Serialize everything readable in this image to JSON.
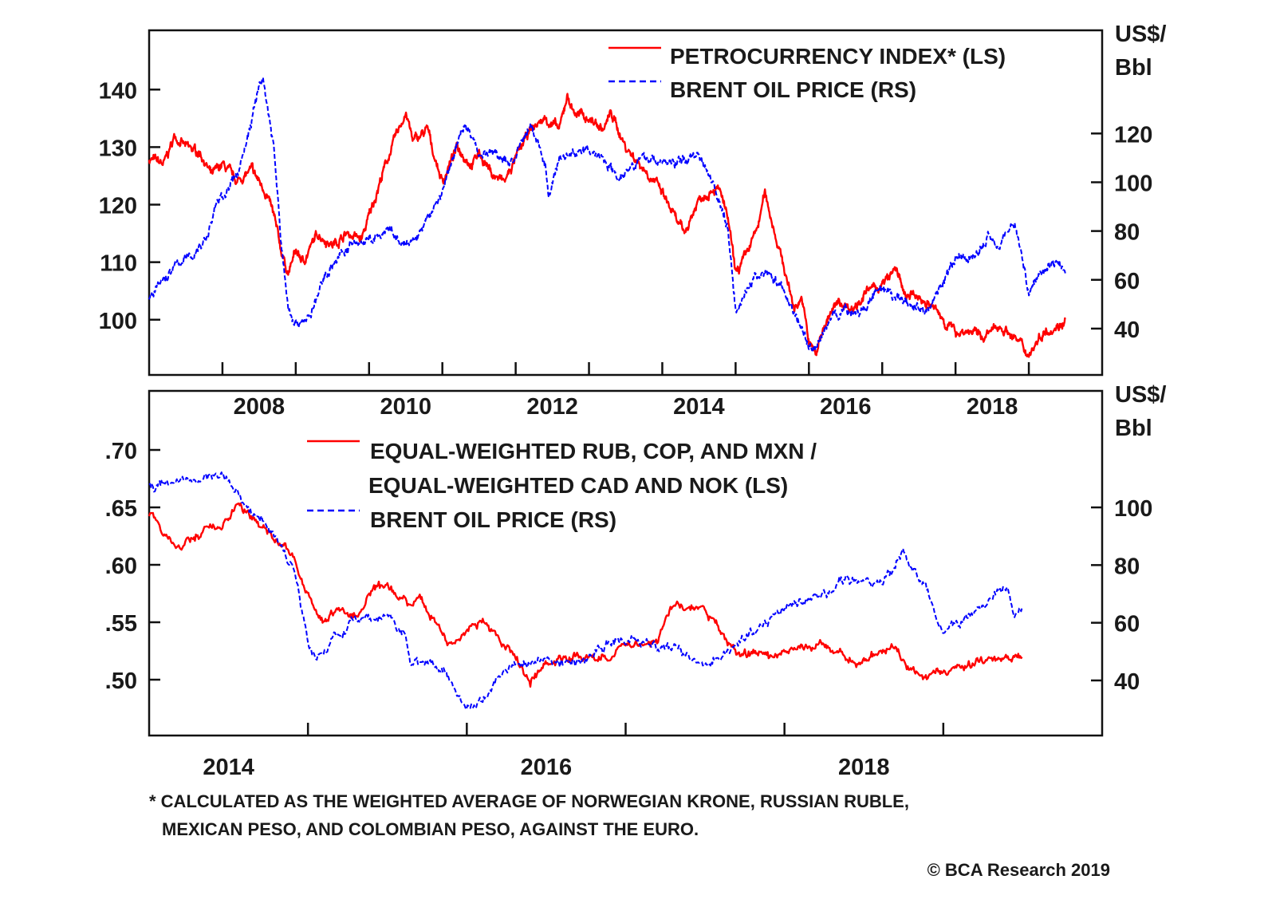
{
  "chart_data": [
    {
      "type": "line",
      "title": "",
      "x_ticks": [
        "2008",
        "2010",
        "2012",
        "2014",
        "2016",
        "2018"
      ],
      "xlim": [
        2007,
        2020
      ],
      "left_axis": {
        "label": "",
        "ticks": [
          "140",
          "130",
          "120",
          "110",
          "100"
        ],
        "tick_values": [
          140,
          130,
          120,
          110,
          100
        ],
        "ylim": [
          90.4,
          150.3
        ]
      },
      "right_axis": {
        "label_line1": "US$/",
        "label_line2": "Bbl",
        "ticks": [
          "120",
          "100",
          "80",
          "60",
          "40"
        ],
        "tick_values": [
          120,
          100,
          80,
          60,
          40
        ],
        "ylim": [
          21,
          162.3
        ]
      },
      "legend": {
        "placement": "top-right",
        "entries": [
          "PETROCURRENCY INDEX* (LS)",
          "BRENT OIL PRICE (RS)"
        ]
      },
      "series": [
        {
          "name": "PETROCURRENCY INDEX* (LS)",
          "axis": "left",
          "color": "#ff0000",
          "style": "solid",
          "x": [
            2007.0,
            2007.2,
            2007.35,
            2007.5,
            2007.7,
            2007.85,
            2008.0,
            2008.2,
            2008.4,
            2008.6,
            2008.7,
            2008.8,
            2008.9,
            2009.0,
            2009.1,
            2009.3,
            2009.5,
            2009.7,
            2009.9,
            2010.0,
            2010.2,
            2010.4,
            2010.5,
            2010.6,
            2010.8,
            2010.9,
            2011.0,
            2011.2,
            2011.4,
            2011.5,
            2011.7,
            2011.85,
            2012.0,
            2012.2,
            2012.4,
            2012.6,
            2012.7,
            2012.8,
            2013.0,
            2013.2,
            2013.3,
            2013.5,
            2013.7,
            2013.9,
            2014.0,
            2014.2,
            2014.3,
            2014.5,
            2014.7,
            2014.8,
            2014.9,
            2015.0,
            2015.1,
            2015.3,
            2015.4,
            2015.5,
            2015.6,
            2015.8,
            2015.9,
            2016.0,
            2016.1,
            2016.2,
            2016.4,
            2016.6,
            2016.8,
            2017.0,
            2017.2,
            2017.3,
            2017.5,
            2017.7,
            2017.9,
            2018.0,
            2018.2,
            2018.4,
            2018.6,
            2018.8,
            2019.0,
            2019.2,
            2019.4,
            2019.5
          ],
          "y": [
            128,
            127,
            132,
            130,
            129,
            125,
            127,
            124,
            126,
            122,
            118,
            112,
            108,
            112,
            110,
            115,
            113,
            115,
            114,
            118,
            126,
            133,
            136,
            131,
            133,
            128,
            124,
            130,
            127,
            129,
            125,
            124,
            128,
            133,
            135,
            133,
            139,
            136,
            135,
            133,
            136,
            130,
            127,
            124,
            122,
            117,
            115,
            121,
            123,
            122,
            117,
            108,
            110,
            116,
            122,
            117,
            112,
            102,
            104,
            96,
            94,
            99,
            103,
            102,
            105,
            106,
            109,
            104,
            104,
            102,
            99,
            98,
            98,
            97,
            99,
            97,
            94,
            98,
            99,
            100
          ]
        },
        {
          "name": "BRENT OIL PRICE (RS)",
          "axis": "right",
          "color": "#0000ff",
          "style": "dashed",
          "x": [
            2007.0,
            2007.2,
            2007.4,
            2007.6,
            2007.8,
            2007.9,
            2008.0,
            2008.2,
            2008.4,
            2008.5,
            2008.55,
            2008.7,
            2008.8,
            2008.9,
            2009.0,
            2009.2,
            2009.4,
            2009.6,
            2009.8,
            2010.0,
            2010.3,
            2010.4,
            2010.6,
            2010.8,
            2011.0,
            2011.2,
            2011.3,
            2011.5,
            2011.7,
            2011.9,
            2012.0,
            2012.2,
            2012.4,
            2012.45,
            2012.6,
            2012.8,
            2013.0,
            2013.2,
            2013.4,
            2013.6,
            2013.8,
            2014.0,
            2014.2,
            2014.5,
            2014.7,
            2014.9,
            2015.0,
            2015.2,
            2015.4,
            2015.6,
            2015.8,
            2016.0,
            2016.1,
            2016.3,
            2016.5,
            2016.7,
            2016.9,
            2017.0,
            2017.4,
            2017.6,
            2017.8,
            2018.0,
            2018.3,
            2018.45,
            2018.6,
            2018.8,
            2018.9,
            2019.0,
            2019.2,
            2019.4,
            2019.5
          ],
          "y": [
            52,
            60,
            67,
            70,
            78,
            90,
            94,
            103,
            125,
            140,
            143,
            115,
            75,
            48,
            42,
            45,
            62,
            70,
            75,
            76,
            80,
            75,
            75,
            85,
            96,
            115,
            125,
            112,
            112,
            108,
            110,
            124,
            108,
            95,
            110,
            112,
            113,
            110,
            102,
            108,
            110,
            108,
            108,
            112,
            100,
            80,
            48,
            58,
            64,
            58,
            47,
            33,
            32,
            45,
            48,
            46,
            54,
            55,
            50,
            47,
            58,
            68,
            70,
            78,
            75,
            84,
            70,
            55,
            65,
            68,
            63
          ]
        }
      ]
    },
    {
      "type": "line",
      "title": "",
      "x_ticks": [
        "2014",
        "2016",
        "2018"
      ],
      "xlim": [
        2014,
        2020
      ],
      "left_axis": {
        "label": "",
        "ticks": [
          ".70",
          ".65",
          ".60",
          ".55",
          ".50"
        ],
        "tick_values": [
          0.7,
          0.65,
          0.6,
          0.55,
          0.5
        ],
        "ylim": [
          0.4514,
          0.7514
        ]
      },
      "right_axis": {
        "label_line1": "US$/",
        "label_line2": "Bbl",
        "ticks": [
          "100",
          "80",
          "60",
          "40"
        ],
        "tick_values": [
          100,
          80,
          60,
          40
        ],
        "ylim": [
          20.9,
          140.4
        ]
      },
      "legend": {
        "placement": "top-center",
        "entries": [
          "EQUAL-WEIGHTED RUB, COP, AND MXN /",
          "EQUAL-WEIGHTED CAD AND NOK (LS)",
          "BRENT OIL PRICE (RS)"
        ]
      },
      "series": [
        {
          "name": "EQUAL-WEIGHTED RUB, COP, AND MXN / EQUAL-WEIGHTED CAD AND NOK (LS)",
          "axis": "left",
          "color": "#ff0000",
          "style": "solid",
          "x": [
            2014.0,
            2014.1,
            2014.2,
            2014.3,
            2014.5,
            2014.55,
            2014.7,
            2014.9,
            2015.0,
            2015.1,
            2015.15,
            2015.3,
            2015.4,
            2015.5,
            2015.6,
            2015.65,
            2015.7,
            2015.8,
            2015.9,
            2016.0,
            2016.1,
            2016.2,
            2016.3,
            2016.4,
            2016.5,
            2016.7,
            2016.9,
            2017.0,
            2017.2,
            2017.3,
            2017.5,
            2017.6,
            2017.7,
            2017.9,
            2018.0,
            2018.2,
            2018.3,
            2018.5,
            2018.7,
            2018.8,
            2019.0,
            2019.1,
            2019.3,
            2019.5
          ],
          "y": [
            0.645,
            0.625,
            0.615,
            0.625,
            0.64,
            0.65,
            0.635,
            0.61,
            0.57,
            0.55,
            0.56,
            0.555,
            0.575,
            0.58,
            0.57,
            0.565,
            0.575,
            0.55,
            0.53,
            0.545,
            0.55,
            0.535,
            0.52,
            0.5,
            0.515,
            0.52,
            0.52,
            0.53,
            0.535,
            0.565,
            0.56,
            0.54,
            0.525,
            0.52,
            0.525,
            0.53,
            0.525,
            0.515,
            0.53,
            0.505,
            0.505,
            0.51,
            0.52,
            0.522
          ]
        },
        {
          "name": "BRENT OIL PRICE (RS)",
          "axis": "right",
          "color": "#0000ff",
          "style": "dashed",
          "x": [
            2014.0,
            2014.2,
            2014.45,
            2014.6,
            2014.8,
            2014.9,
            2015.0,
            2015.05,
            2015.2,
            2015.3,
            2015.5,
            2015.6,
            2015.65,
            2015.85,
            2016.0,
            2016.1,
            2016.3,
            2016.5,
            2016.7,
            2016.9,
            2017.0,
            2017.2,
            2017.4,
            2017.5,
            2017.8,
            2018.0,
            2018.2,
            2018.4,
            2018.6,
            2018.75,
            2018.9,
            2019.0,
            2019.2,
            2019.4,
            2019.45,
            2019.5
          ],
          "y": [
            108,
            108,
            112,
            102,
            90,
            80,
            55,
            48,
            57,
            60,
            62,
            57,
            47,
            45,
            30,
            35,
            46,
            47,
            46,
            53,
            54,
            52,
            49,
            46,
            56,
            66,
            68,
            75,
            73,
            84,
            71,
            56,
            64,
            72,
            62,
            66
          ]
        }
      ]
    }
  ],
  "footnote": {
    "line1": "* CALCULATED AS THE WEIGHTED AVERAGE OF NORWEGIAN KRONE, RUSSIAN RUBLE,",
    "line2": "MEXICAN PESO, AND COLOMBIAN PESO, AGAINST THE EURO."
  },
  "source": "© BCA Research 2019"
}
